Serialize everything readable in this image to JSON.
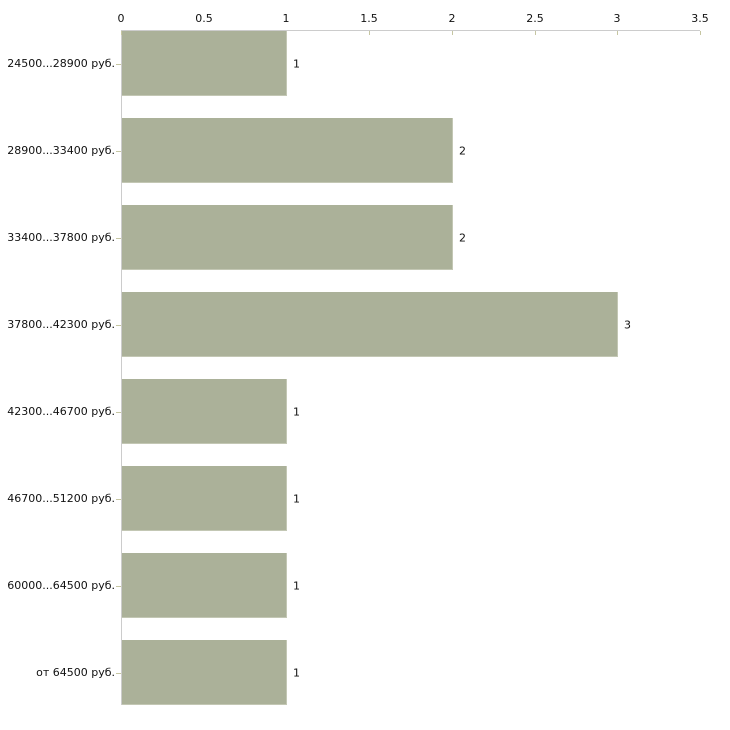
{
  "chart_data": {
    "type": "bar",
    "orientation": "horizontal",
    "title": "",
    "xlabel": "",
    "ylabel": "",
    "categories": [
      "24500...28900 руб.",
      "28900...33400 руб.",
      "33400...37800 руб.",
      "37800...42300 руб.",
      "42300...46700 руб.",
      "46700...51200 руб.",
      "60000...64500 руб.",
      "от 64500 руб."
    ],
    "values": [
      1,
      2,
      2,
      3,
      1,
      1,
      1,
      1
    ],
    "value_labels": [
      "1",
      "2",
      "2",
      "3",
      "1",
      "1",
      "1",
      "1"
    ],
    "x_ticks": [
      "0",
      "0.5",
      "1",
      "1.5",
      "2",
      "2.5",
      "3",
      "3.5"
    ],
    "x_tick_values": [
      0,
      0.5,
      1,
      1.5,
      2,
      2.5,
      3,
      3.5
    ],
    "xlim": [
      0,
      3.5
    ],
    "grid": false,
    "legend": false,
    "axis_position": "top",
    "colors": {
      "bar_fill": "#abb199",
      "bar_edge": "#c3c7b4",
      "axis_line": "#cccccc",
      "tick_mark": "#c6c6a2",
      "text": "#111111",
      "background": "#ffffff"
    }
  }
}
